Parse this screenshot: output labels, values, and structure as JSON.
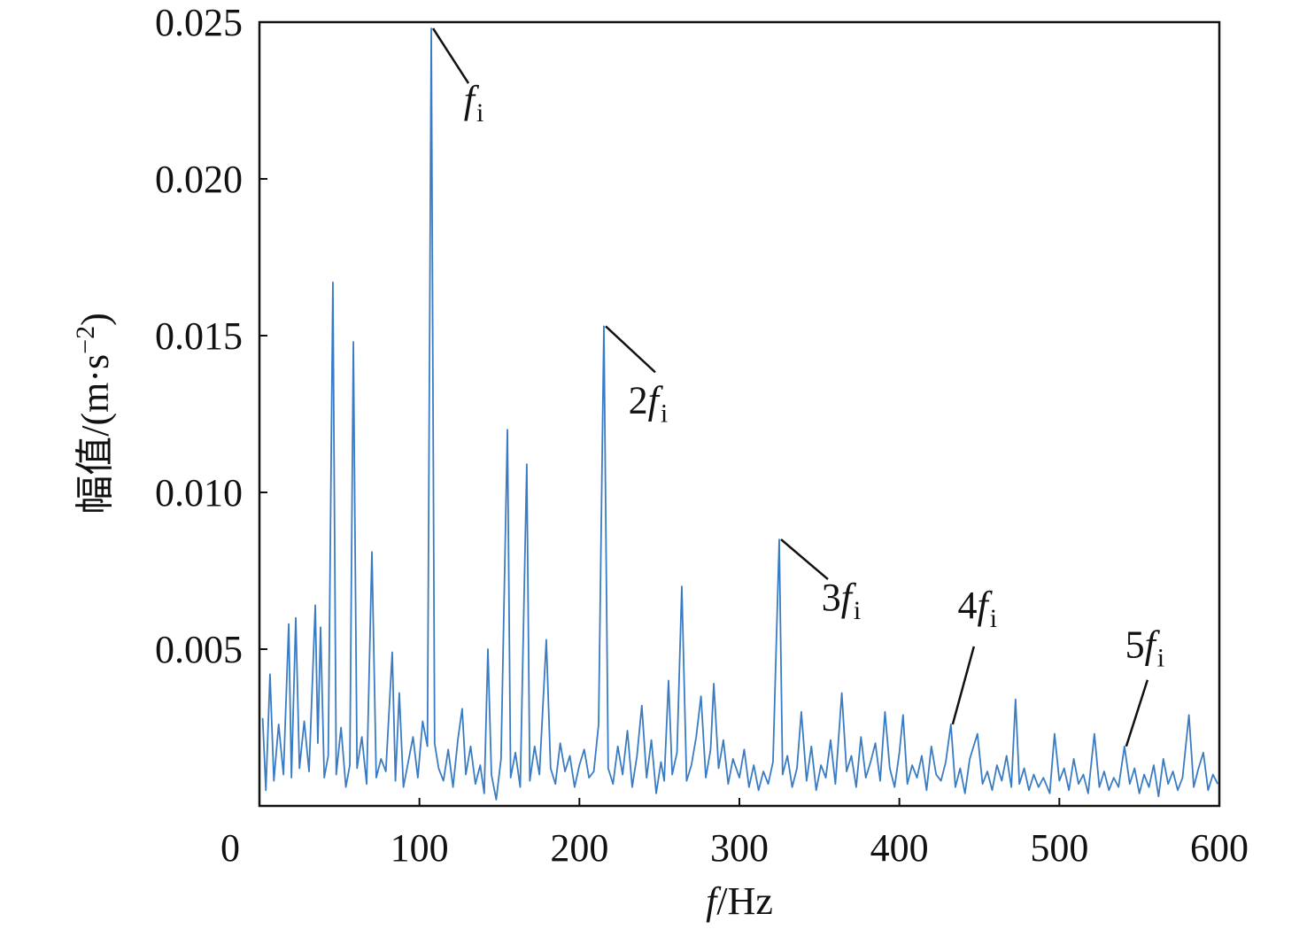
{
  "chart_data": {
    "type": "line",
    "xlabel": {
      "symbol": "f",
      "unit": "/Hz"
    },
    "ylabel": {
      "text": "幅值/(m·s",
      "sup": "−2",
      "end": ")"
    },
    "xlim": [
      0,
      600
    ],
    "xticks": [
      0,
      100,
      200,
      300,
      400,
      500,
      600
    ],
    "ylim": [
      0,
      0.025
    ],
    "yticks": [
      0.005,
      {
        "value": 0.01,
        "label": "0.010"
      },
      0.015,
      {
        "value": 0.02,
        "label": "0.020"
      },
      0.025
    ],
    "x": [
      2,
      4,
      6.6,
      9,
      12,
      15,
      18.3,
      20,
      22.7,
      25,
      28,
      31,
      34.9,
      36.5,
      38.2,
      40.5,
      43,
      45.9,
      48,
      51,
      54,
      56.5,
      58.7,
      61,
      64,
      67,
      70.3,
      73,
      76,
      79,
      83,
      85,
      87.4,
      90,
      93,
      96,
      99,
      102,
      105,
      107.4,
      109.5,
      112,
      115,
      118,
      121,
      124,
      126.7,
      129,
      132,
      135,
      138,
      140.5,
      142.8,
      145,
      148,
      151,
      155,
      157,
      160,
      163,
      167.1,
      169,
      172,
      175,
      179.3,
      182,
      185,
      188,
      191,
      194,
      197,
      200,
      203,
      206,
      209,
      212,
      215.3,
      218,
      221,
      224,
      227,
      230,
      233,
      236,
      239,
      242,
      245,
      248,
      251,
      253,
      255.7,
      258,
      261,
      264,
      267,
      270,
      273,
      276,
      279,
      282,
      284,
      287,
      290,
      293,
      296,
      300,
      303,
      306,
      309,
      312,
      315,
      318,
      321,
      324.9,
      327,
      330,
      333,
      336,
      338.7,
      342,
      345,
      348,
      351,
      354,
      357,
      360,
      364,
      367,
      370,
      373,
      376,
      379,
      382,
      385,
      388,
      391,
      394,
      397,
      400,
      402.3,
      405,
      408,
      411,
      414,
      417,
      420,
      423,
      426,
      429,
      432.2,
      435,
      438,
      441,
      444,
      448.8,
      452,
      455,
      458,
      461,
      464,
      467,
      470,
      472.6,
      475,
      478,
      481,
      484,
      487,
      490,
      494,
      497,
      500,
      503,
      506,
      509,
      512,
      515,
      518,
      521.9,
      525,
      528,
      531,
      534,
      537,
      540.7,
      544,
      547,
      550,
      553,
      556,
      559,
      562,
      565,
      568,
      571,
      574,
      577,
      581,
      584,
      587,
      590,
      593,
      596,
      599
    ],
    "series": [
      {
        "color": "#3a7cc4",
        "values": [
          0.0028,
          0.0005,
          0.0042,
          0.0008,
          0.0026,
          0.001,
          0.0058,
          0.0009,
          0.006,
          0.0012,
          0.0027,
          0.0011,
          0.0064,
          0.002,
          0.0057,
          0.0009,
          0.0016,
          0.0167,
          0.001,
          0.0025,
          0.0006,
          0.0013,
          0.0148,
          0.0012,
          0.0022,
          0.0007,
          0.0081,
          0.0009,
          0.0015,
          0.0011,
          0.0049,
          0.0008,
          0.0036,
          0.0006,
          0.0014,
          0.0022,
          0.0009,
          0.0027,
          0.0019,
          0.0248,
          0.002,
          0.0012,
          0.0008,
          0.0018,
          0.0006,
          0.0021,
          0.0031,
          0.001,
          0.0019,
          0.0007,
          0.0013,
          0.0004,
          0.005,
          0.001,
          0.0002,
          0.0015,
          0.012,
          0.0009,
          0.0017,
          0.0006,
          0.0109,
          0.0008,
          0.0019,
          0.001,
          0.0053,
          0.0012,
          0.0007,
          0.002,
          0.0011,
          0.0016,
          0.0006,
          0.0013,
          0.0018,
          0.0009,
          0.0011,
          0.0026,
          0.0153,
          0.0012,
          0.0007,
          0.0019,
          0.001,
          0.0024,
          0.0006,
          0.0016,
          0.0032,
          0.0009,
          0.0021,
          0.0004,
          0.0014,
          0.0008,
          0.004,
          0.001,
          0.0017,
          0.007,
          0.0008,
          0.0013,
          0.0022,
          0.0035,
          0.0009,
          0.0018,
          0.0039,
          0.0012,
          0.0021,
          0.0007,
          0.0015,
          0.0009,
          0.0018,
          0.0006,
          0.0013,
          0.0005,
          0.0011,
          0.0007,
          0.0014,
          0.0085,
          0.001,
          0.0016,
          0.0006,
          0.0012,
          0.003,
          0.0008,
          0.0019,
          0.0005,
          0.0013,
          0.0009,
          0.0021,
          0.0007,
          0.0036,
          0.0011,
          0.0016,
          0.0006,
          0.0022,
          0.0009,
          0.0014,
          0.002,
          0.0008,
          0.003,
          0.0012,
          0.0006,
          0.0017,
          0.0029,
          0.0007,
          0.0013,
          0.0009,
          0.0016,
          0.0005,
          0.0019,
          0.001,
          0.0008,
          0.0014,
          0.0026,
          0.0006,
          0.0012,
          0.0004,
          0.0015,
          0.0023,
          0.0007,
          0.0011,
          0.0005,
          0.0013,
          0.0008,
          0.0016,
          0.0006,
          0.0034,
          0.0007,
          0.0012,
          0.0005,
          0.001,
          0.0006,
          0.0009,
          0.0004,
          0.0023,
          0.0008,
          0.0012,
          0.0005,
          0.0015,
          0.0007,
          0.001,
          0.0004,
          0.0023,
          0.0006,
          0.0011,
          0.0005,
          0.0009,
          0.0006,
          0.0019,
          0.0007,
          0.0012,
          0.0004,
          0.001,
          0.0006,
          0.0013,
          0.0003,
          0.0015,
          0.0007,
          0.0011,
          0.0005,
          0.0009,
          0.0029,
          0.0006,
          0.0012,
          0.0017,
          0.0005,
          0.001,
          0.0007
        ]
      }
    ],
    "annotations": [
      {
        "symbol": "f",
        "subscript": "i",
        "x": 107.4
      },
      {
        "coefficient": "2",
        "symbol": "f",
        "subscript": "i",
        "x": 215.3
      },
      {
        "coefficient": "3",
        "symbol": "f",
        "subscript": "i",
        "x": 324.9
      },
      {
        "coefficient": "4",
        "symbol": "f",
        "subscript": "i",
        "x": 432.2
      },
      {
        "coefficient": "5",
        "symbol": "f",
        "subscript": "i",
        "x": 540.7
      }
    ]
  }
}
